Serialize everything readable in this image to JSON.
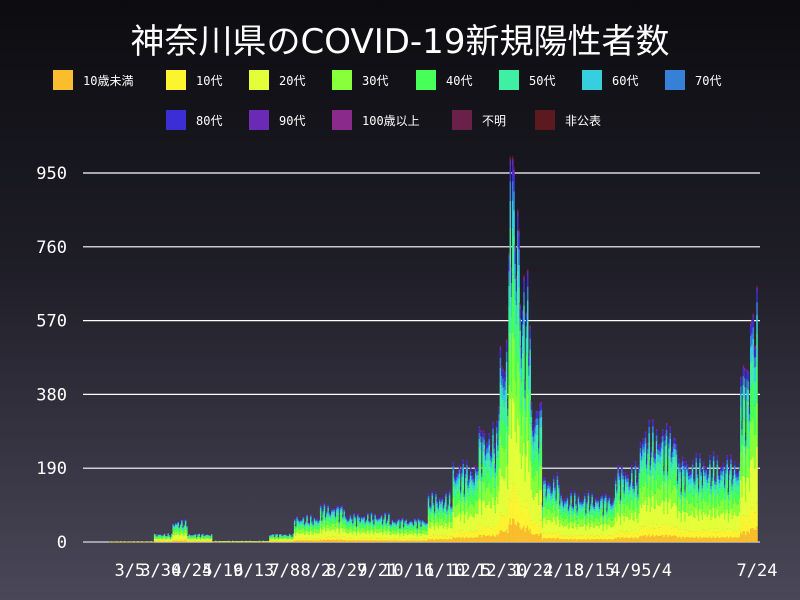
{
  "chart_data": {
    "type": "bar",
    "stacked": true,
    "title": "神奈川県のCOVID-19新規陽性者数",
    "xlabel": "",
    "ylabel": "",
    "ylim": [
      0,
      1000
    ],
    "y_ticks": [
      0,
      190,
      380,
      570,
      760,
      950
    ],
    "x_tick_labels": [
      "3/5",
      "3/30",
      "4/24",
      "5/19",
      "6/13",
      "7/8",
      "8/2",
      "8/27",
      "9/21",
      "10/16",
      "11/10",
      "12/5",
      "12/30",
      "1/24",
      "2/18",
      "3/15",
      "4/9",
      "5/4",
      "7/24"
    ],
    "x_range": [
      "2020-02-18",
      "2021-07-24"
    ],
    "grid": true,
    "legend_position": "top",
    "series": [
      {
        "name": "10歳未満",
        "color": "#f9bd2d"
      },
      {
        "name": "10代",
        "color": "#fdf430"
      },
      {
        "name": "20代",
        "color": "#e4ff3a"
      },
      {
        "name": "30代",
        "color": "#87ff3a"
      },
      {
        "name": "40代",
        "color": "#46ff58"
      },
      {
        "name": "50代",
        "color": "#3ff0a4"
      },
      {
        "name": "60代",
        "color": "#35cfe0"
      },
      {
        "name": "70代",
        "color": "#3680d8"
      },
      {
        "name": "80代",
        "color": "#3a2ed4"
      },
      {
        "name": "90代",
        "color": "#6a2ab5"
      },
      {
        "name": "100歳以上",
        "color": "#8a2a8a"
      },
      {
        "name": "不明",
        "color": "#6a2048"
      },
      {
        "name": "非公表",
        "color": "#5c1a20"
      }
    ],
    "age_share": [
      0.06,
      0.09,
      0.22,
      0.17,
      0.15,
      0.12,
      0.07,
      0.05,
      0.04,
      0.015,
      0.002,
      0.003,
      0.005
    ],
    "daily_totals_by_period": [
      {
        "start": "2020-02-18",
        "end": "2020-03-24",
        "value": 3
      },
      {
        "start": "2020-03-25",
        "end": "2020-04-08",
        "value": 20
      },
      {
        "start": "2020-04-09",
        "end": "2020-04-20",
        "value": 50
      },
      {
        "start": "2020-04-21",
        "end": "2020-05-10",
        "value": 20
      },
      {
        "start": "2020-05-11",
        "end": "2020-06-25",
        "value": 4
      },
      {
        "start": "2020-06-26",
        "end": "2020-07-15",
        "value": 20
      },
      {
        "start": "2020-07-16",
        "end": "2020-08-05",
        "value": 60
      },
      {
        "start": "2020-08-06",
        "end": "2020-08-25",
        "value": 85
      },
      {
        "start": "2020-08-26",
        "end": "2020-09-30",
        "value": 65
      },
      {
        "start": "2020-10-01",
        "end": "2020-10-31",
        "value": 55
      },
      {
        "start": "2020-11-01",
        "end": "2020-11-20",
        "value": 110
      },
      {
        "start": "2020-11-21",
        "end": "2020-12-10",
        "value": 180
      },
      {
        "start": "2020-12-11",
        "end": "2020-12-27",
        "value": 260
      },
      {
        "start": "2020-12-28",
        "end": "2021-01-04",
        "value": 450
      },
      {
        "start": "2021-01-05",
        "end": "2021-01-13",
        "value": 800
      },
      {
        "start": "2021-01-14",
        "end": "2021-01-22",
        "value": 580
      },
      {
        "start": "2021-01-23",
        "end": "2021-01-31",
        "value": 320
      },
      {
        "start": "2021-02-01",
        "end": "2021-02-15",
        "value": 150
      },
      {
        "start": "2021-02-16",
        "end": "2021-03-31",
        "value": 110
      },
      {
        "start": "2021-04-01",
        "end": "2021-04-20",
        "value": 170
      },
      {
        "start": "2021-04-21",
        "end": "2021-05-20",
        "value": 260
      },
      {
        "start": "2021-05-21",
        "end": "2021-06-15",
        "value": 190
      },
      {
        "start": "2021-06-16",
        "end": "2021-07-10",
        "value": 190
      },
      {
        "start": "2021-07-11",
        "end": "2021-07-18",
        "value": 400
      },
      {
        "start": "2021-07-19",
        "end": "2021-07-24",
        "value": 560
      }
    ],
    "peak": {
      "date": "2021-01-08",
      "value": 999
    }
  }
}
